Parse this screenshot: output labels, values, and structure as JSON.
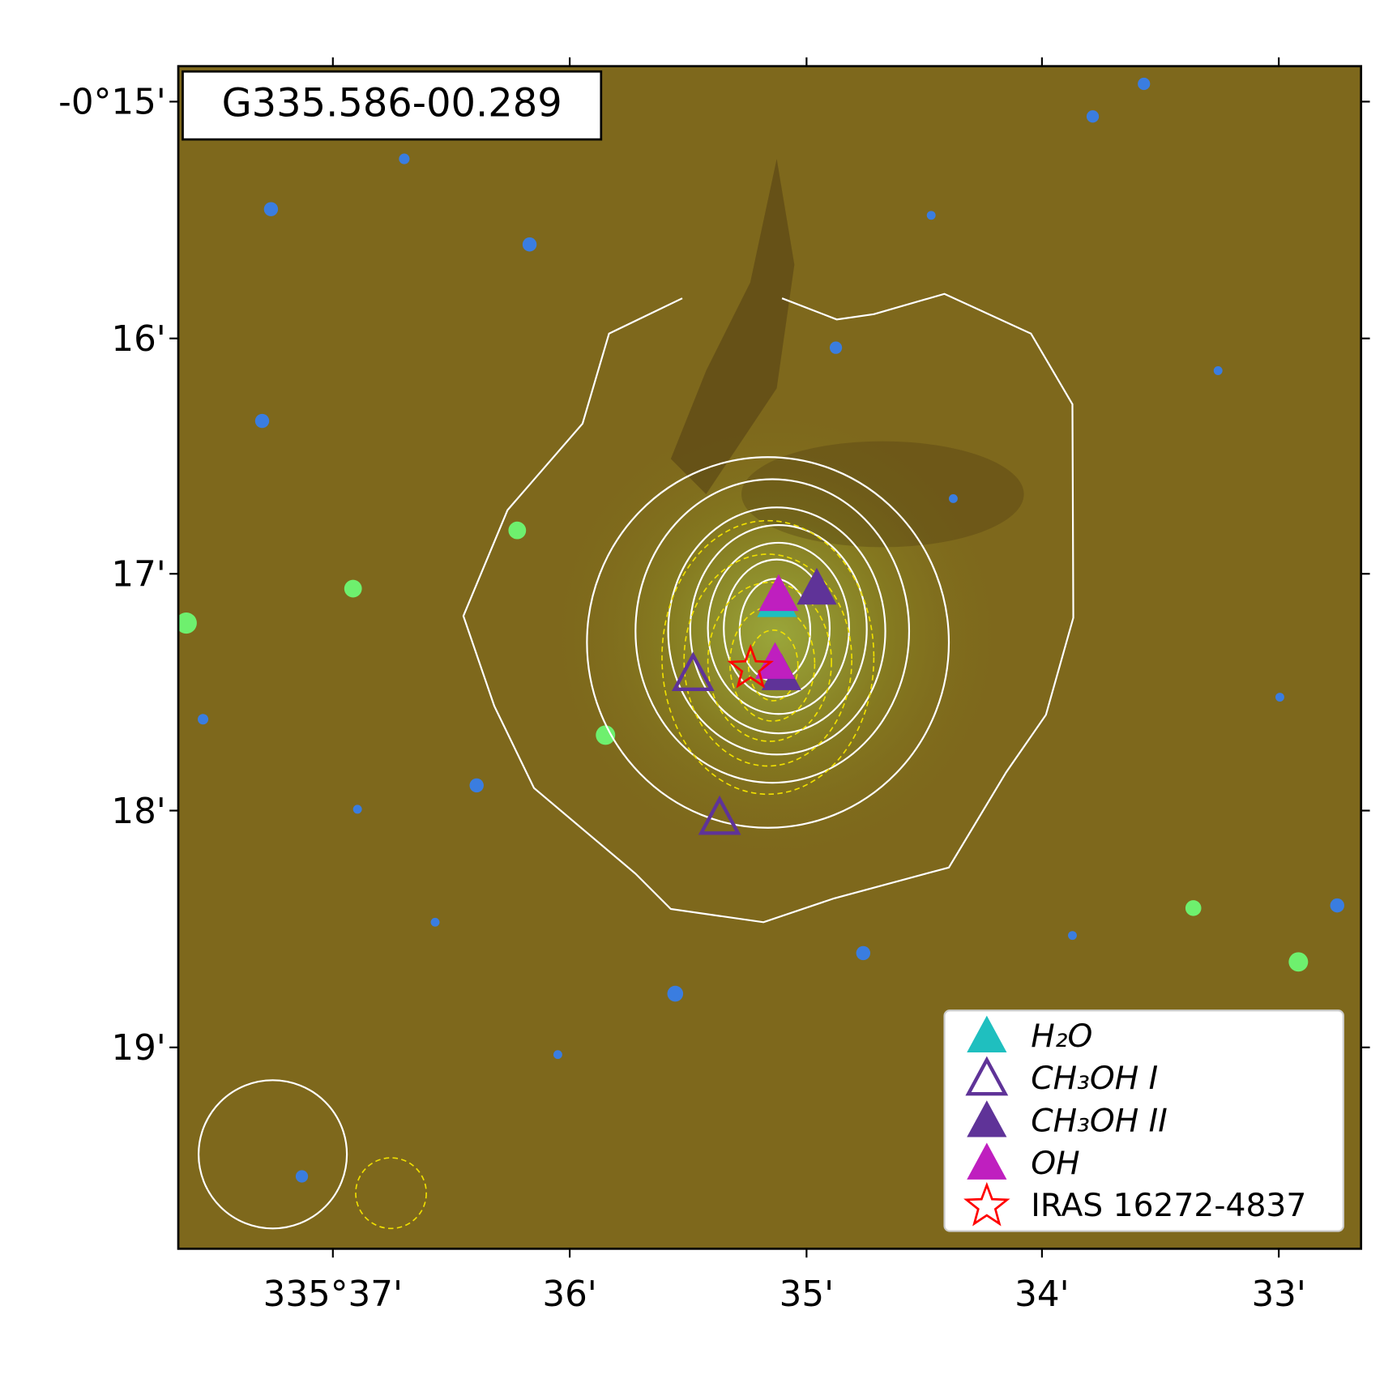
{
  "chart_data": {
    "type": "scatter",
    "title": "G335.586-00.289",
    "xlim": [
      335.6276,
      335.5442
    ],
    "ylim": [
      -0.3309,
      -0.2475
    ],
    "xticks": [
      {
        "value": 335.6167,
        "label": "335°37'"
      },
      {
        "value": 335.6,
        "label": "36'"
      },
      {
        "value": 335.5833,
        "label": "35'"
      },
      {
        "value": 335.5667,
        "label": "34'"
      },
      {
        "value": 335.55,
        "label": "33'"
      }
    ],
    "yticks": [
      {
        "value": -0.25,
        "label": "-0°15'"
      },
      {
        "value": -0.2667,
        "label": "16'"
      },
      {
        "value": -0.2833,
        "label": "17'"
      },
      {
        "value": -0.3,
        "label": "18'"
      },
      {
        "value": -0.3167,
        "label": "19'"
      }
    ],
    "legend": "lower right",
    "series": [
      {
        "name": "H₂O",
        "color": "#1fbfbf",
        "marker": "triangle",
        "filled": true,
        "x": [
          335.58538
        ],
        "y": [
          -0.28526
        ]
      },
      {
        "name": "CH₃OH I",
        "color": "#5f3398",
        "marker": "triangle",
        "filled": false,
        "x": [
          335.5913,
          335.58943
        ],
        "y": [
          -0.29042,
          -0.30056
        ]
      },
      {
        "name": "CH₃OH II",
        "color": "#5f3398",
        "marker": "triangle",
        "filled": true,
        "x": [
          335.58258,
          335.58507
        ],
        "y": [
          -0.28438,
          -0.29042
        ]
      },
      {
        "name": "OH",
        "color": "#bf1fbf",
        "marker": "triangle",
        "filled": true,
        "x": [
          335.58527,
          335.58552
        ],
        "y": [
          -0.28483,
          -0.28962
        ]
      },
      {
        "name": "IRAS 16272-4837",
        "color": "#ff0000",
        "marker": "star",
        "filled": false,
        "x": [
          335.58725
        ],
        "y": [
          -0.28998
        ]
      }
    ]
  }
}
